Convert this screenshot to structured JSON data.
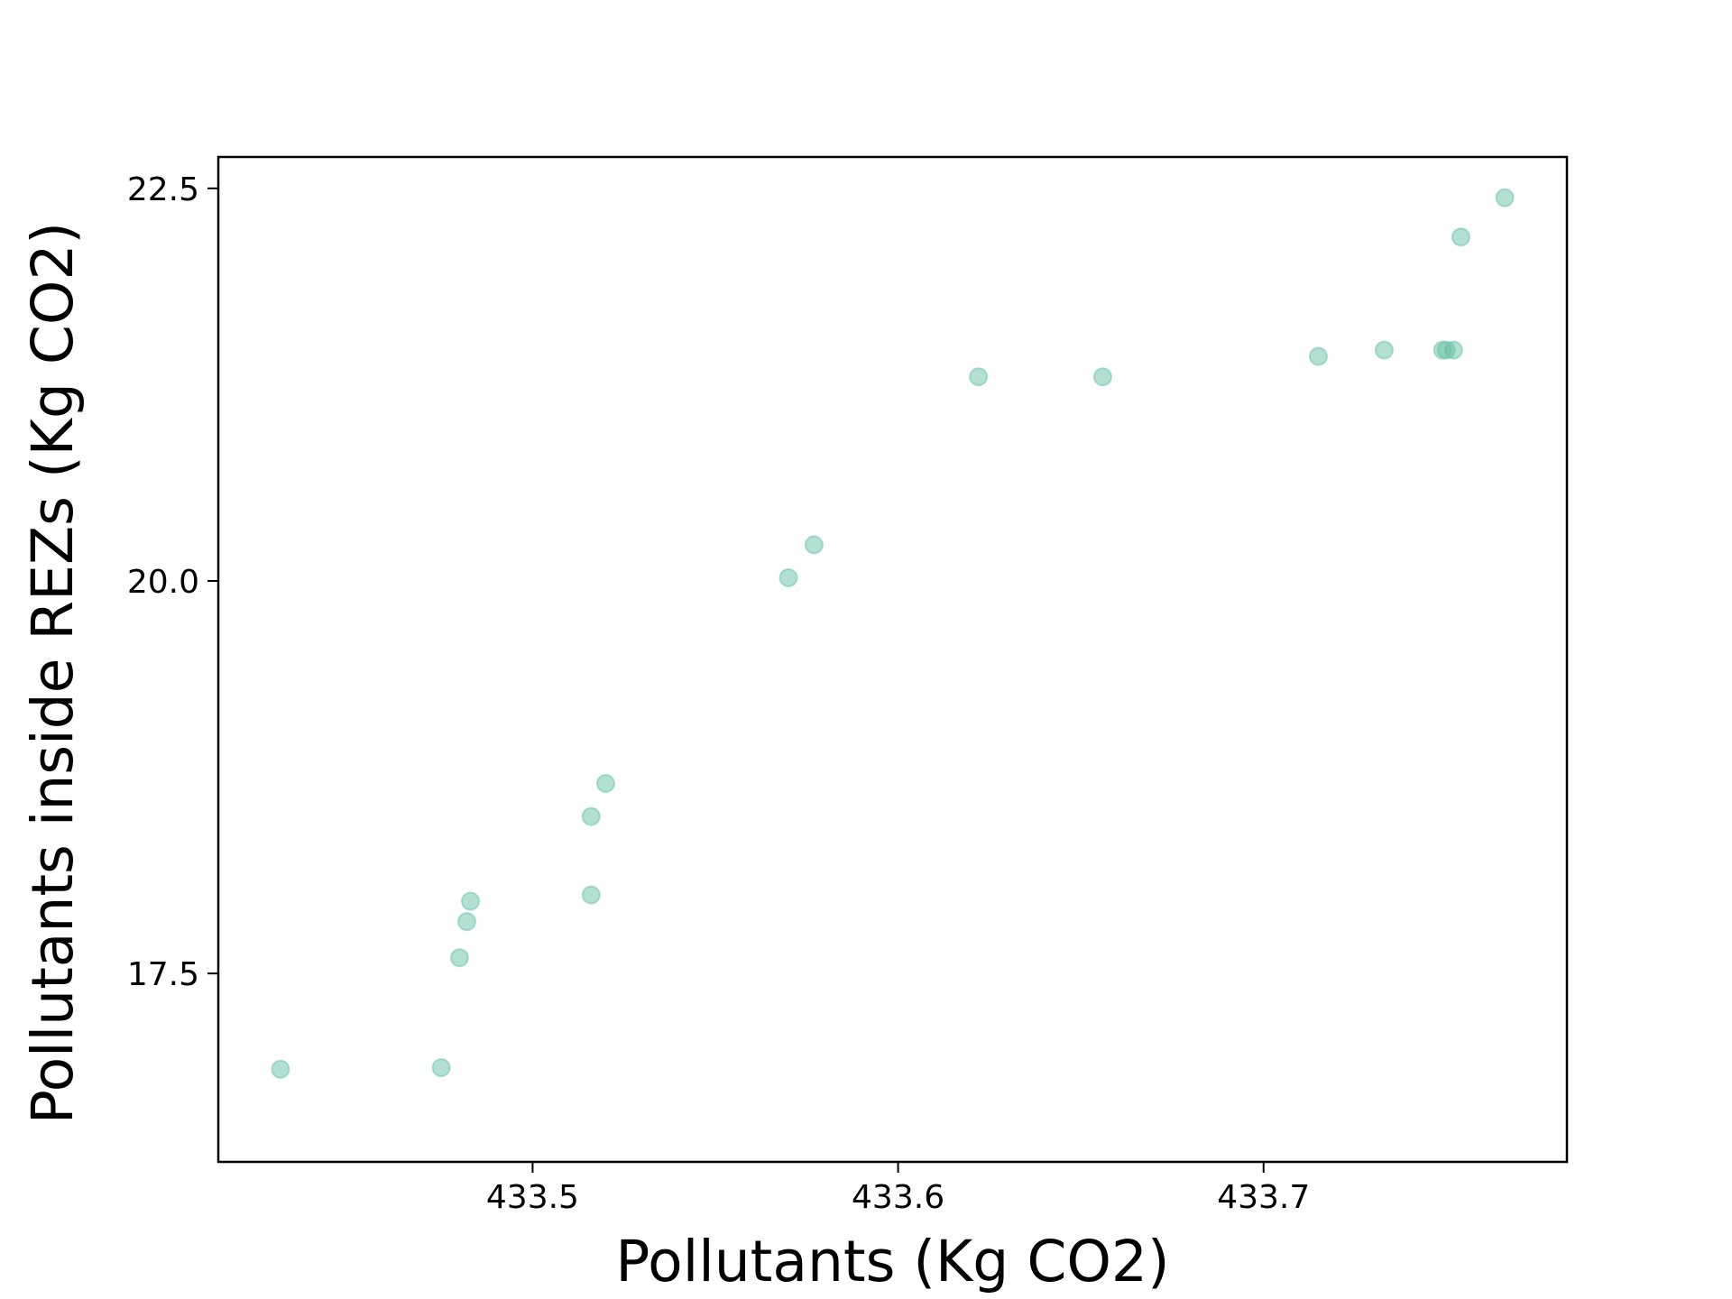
{
  "chart_data": {
    "type": "scatter",
    "title": "",
    "xlabel": "Pollutants (Kg CO2)",
    "ylabel": "Pollutants inside REZs (Kg CO2)",
    "xlim": [
      433.414,
      433.783
    ],
    "ylim": [
      16.3,
      22.7
    ],
    "xticks": [
      {
        "value": 433.5,
        "label": "433.5"
      },
      {
        "value": 433.6,
        "label": "433.6"
      },
      {
        "value": 433.7,
        "label": "433.7"
      }
    ],
    "yticks": [
      {
        "value": 17.5,
        "label": "17.5"
      },
      {
        "value": 20.0,
        "label": "20.0"
      },
      {
        "value": 22.5,
        "label": "22.5"
      }
    ],
    "grid": false,
    "legend": "none",
    "series": [
      {
        "color": "#66c2a5",
        "alpha": 0.5,
        "points": [
          {
            "x": 433.431,
            "y": 16.89
          },
          {
            "x": 433.475,
            "y": 16.9
          },
          {
            "x": 433.48,
            "y": 17.6
          },
          {
            "x": 433.482,
            "y": 17.83
          },
          {
            "x": 433.483,
            "y": 17.96
          },
          {
            "x": 433.516,
            "y": 18.0
          },
          {
            "x": 433.516,
            "y": 18.5
          },
          {
            "x": 433.52,
            "y": 18.71
          },
          {
            "x": 433.57,
            "y": 20.02
          },
          {
            "x": 433.577,
            "y": 20.23
          },
          {
            "x": 433.622,
            "y": 21.3
          },
          {
            "x": 433.656,
            "y": 21.3
          },
          {
            "x": 433.715,
            "y": 21.43
          },
          {
            "x": 433.733,
            "y": 21.47
          },
          {
            "x": 433.749,
            "y": 21.47
          },
          {
            "x": 433.75,
            "y": 21.47
          },
          {
            "x": 433.752,
            "y": 21.47
          },
          {
            "x": 433.754,
            "y": 22.19
          },
          {
            "x": 433.766,
            "y": 22.44
          }
        ]
      }
    ]
  }
}
